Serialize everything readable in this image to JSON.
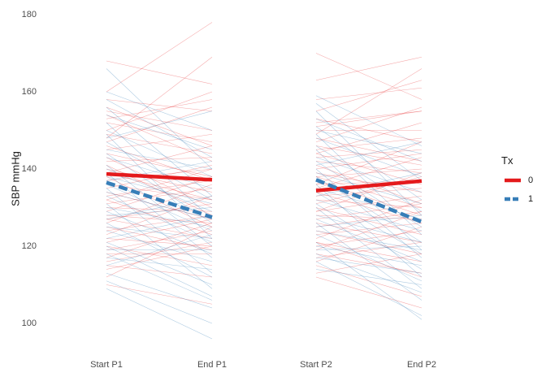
{
  "chart_data": {
    "type": "line",
    "ylabel": "SBP mmHg",
    "xlabel": "",
    "title": "",
    "categories": [
      "Start P1",
      "End P1",
      "Start P2",
      "End P2"
    ],
    "yticks": [
      100,
      120,
      140,
      160,
      180
    ],
    "ylim": [
      93,
      180
    ],
    "grid": false,
    "legend": {
      "title": "Tx",
      "position": "right",
      "entries": [
        {
          "label": "0",
          "color": "#e41a1c",
          "dash": "solid"
        },
        {
          "label": "1",
          "color": "#377eb8",
          "dash": "dashed"
        }
      ]
    },
    "series": [
      {
        "name": "0",
        "color": "#e41a1c",
        "dash": "solid",
        "segments": [
          {
            "from": "Start P1",
            "to": "End P1",
            "values": [
              138.7,
              137.2
            ]
          },
          {
            "from": "Start P2",
            "to": "End P2",
            "values": [
              134.4,
              136.9
            ]
          }
        ]
      },
      {
        "name": "1",
        "color": "#377eb8",
        "dash": "dashed",
        "segments": [
          {
            "from": "Start P1",
            "to": "End P1",
            "values": [
              136.5,
              127.5
            ]
          },
          {
            "from": "Start P2",
            "to": "End P2",
            "values": [
              137.2,
              126.3
            ]
          }
        ]
      }
    ],
    "individual_lines": {
      "0": {
        "color": "#e41a1c",
        "period1": [
          [
            168,
            162
          ],
          [
            160,
            178
          ],
          [
            158,
            155
          ],
          [
            156,
            146
          ],
          [
            155,
            150
          ],
          [
            154,
            142
          ],
          [
            152,
            147
          ],
          [
            150,
            160
          ],
          [
            149,
            144
          ],
          [
            147,
            156
          ],
          [
            146,
            137
          ],
          [
            145,
            149
          ],
          [
            144,
            138
          ],
          [
            143,
            130
          ],
          [
            142,
            143
          ],
          [
            141,
            128
          ],
          [
            140,
            134
          ],
          [
            139,
            146
          ],
          [
            138,
            125
          ],
          [
            137,
            140
          ],
          [
            136,
            132
          ],
          [
            135,
            141
          ],
          [
            134,
            127
          ],
          [
            133,
            137
          ],
          [
            132,
            123
          ],
          [
            131,
            135
          ],
          [
            130,
            129
          ],
          [
            129,
            138
          ],
          [
            128,
            126
          ],
          [
            127,
            131
          ],
          [
            126,
            136
          ],
          [
            125,
            119
          ],
          [
            124,
            128
          ],
          [
            123,
            133
          ],
          [
            122,
            120
          ],
          [
            121,
            127
          ],
          [
            120,
            115
          ],
          [
            119,
            124
          ],
          [
            118,
            118
          ],
          [
            117,
            126
          ],
          [
            116,
            121
          ],
          [
            115,
            112
          ],
          [
            114,
            120
          ],
          [
            112,
            125
          ],
          [
            110,
            105
          ],
          [
            148,
            169
          ],
          [
            153,
            158
          ],
          [
            139,
            132
          ],
          [
            132,
            140
          ],
          [
            127,
            122
          ]
        ],
        "period2": [
          [
            170,
            158
          ],
          [
            163,
            169
          ],
          [
            158,
            161
          ],
          [
            155,
            163
          ],
          [
            153,
            147
          ],
          [
            151,
            155
          ],
          [
            150,
            150
          ],
          [
            148,
            142
          ],
          [
            147,
            156
          ],
          [
            146,
            141
          ],
          [
            145,
            148
          ],
          [
            144,
            136
          ],
          [
            143,
            145
          ],
          [
            142,
            139
          ],
          [
            141,
            131
          ],
          [
            140,
            144
          ],
          [
            139,
            134
          ],
          [
            138,
            140
          ],
          [
            137,
            128
          ],
          [
            136,
            137
          ],
          [
            135,
            143
          ],
          [
            134,
            126
          ],
          [
            133,
            135
          ],
          [
            132,
            130
          ],
          [
            131,
            138
          ],
          [
            130,
            123
          ],
          [
            129,
            133
          ],
          [
            128,
            127
          ],
          [
            127,
            131
          ],
          [
            126,
            121
          ],
          [
            125,
            129
          ],
          [
            124,
            118
          ],
          [
            123,
            126
          ],
          [
            122,
            132
          ],
          [
            121,
            116
          ],
          [
            120,
            124
          ],
          [
            119,
            129
          ],
          [
            118,
            113
          ],
          [
            117,
            121
          ],
          [
            116,
            125
          ],
          [
            115,
            107
          ],
          [
            113,
            118
          ],
          [
            112,
            104
          ],
          [
            149,
            166
          ],
          [
            144,
            152
          ],
          [
            136,
            147
          ],
          [
            129,
            139
          ],
          [
            121,
            112
          ],
          [
            152,
            155
          ],
          [
            138,
            130
          ]
        ]
      },
      "1": {
        "color": "#377eb8",
        "period1": [
          [
            166,
            140
          ],
          [
            160,
            150
          ],
          [
            158,
            143
          ],
          [
            156,
            133
          ],
          [
            154,
            145
          ],
          [
            152,
            127
          ],
          [
            150,
            138
          ],
          [
            149,
            122
          ],
          [
            147,
            132
          ],
          [
            145,
            140
          ],
          [
            144,
            126
          ],
          [
            143,
            135
          ],
          [
            141,
            120
          ],
          [
            140,
            129
          ],
          [
            139,
            117
          ],
          [
            138,
            131
          ],
          [
            136,
            124
          ],
          [
            135,
            113
          ],
          [
            134,
            127
          ],
          [
            133,
            121
          ],
          [
            131,
            109
          ],
          [
            130,
            125
          ],
          [
            129,
            118
          ],
          [
            128,
            130
          ],
          [
            126,
            112
          ],
          [
            125,
            122
          ],
          [
            124,
            116
          ],
          [
            122,
            128
          ],
          [
            121,
            110
          ],
          [
            119,
            119
          ],
          [
            118,
            106
          ],
          [
            117,
            114
          ],
          [
            115,
            123
          ],
          [
            113,
            104
          ],
          [
            111,
            100
          ],
          [
            109,
            96
          ],
          [
            137,
            142
          ],
          [
            127,
            133
          ],
          [
            148,
            155
          ],
          [
            120,
            107
          ]
        ],
        "period2": [
          [
            159,
            146
          ],
          [
            157,
            137
          ],
          [
            155,
            128
          ],
          [
            153,
            142
          ],
          [
            151,
            132
          ],
          [
            149,
            123
          ],
          [
            148,
            138
          ],
          [
            146,
            129
          ],
          [
            145,
            119
          ],
          [
            143,
            134
          ],
          [
            142,
            125
          ],
          [
            140,
            117
          ],
          [
            139,
            131
          ],
          [
            138,
            121
          ],
          [
            136,
            112
          ],
          [
            135,
            127
          ],
          [
            134,
            118
          ],
          [
            132,
            124
          ],
          [
            131,
            114
          ],
          [
            130,
            109
          ],
          [
            128,
            121
          ],
          [
            127,
            116
          ],
          [
            126,
            106
          ],
          [
            124,
            119
          ],
          [
            123,
            111
          ],
          [
            121,
            101
          ],
          [
            120,
            115
          ],
          [
            118,
            108
          ],
          [
            117,
            113
          ],
          [
            116,
            102
          ],
          [
            114,
            110
          ],
          [
            133,
            139
          ],
          [
            141,
            147
          ],
          [
            125,
            128
          ],
          [
            150,
            144
          ],
          [
            119,
            120
          ]
        ]
      }
    }
  }
}
